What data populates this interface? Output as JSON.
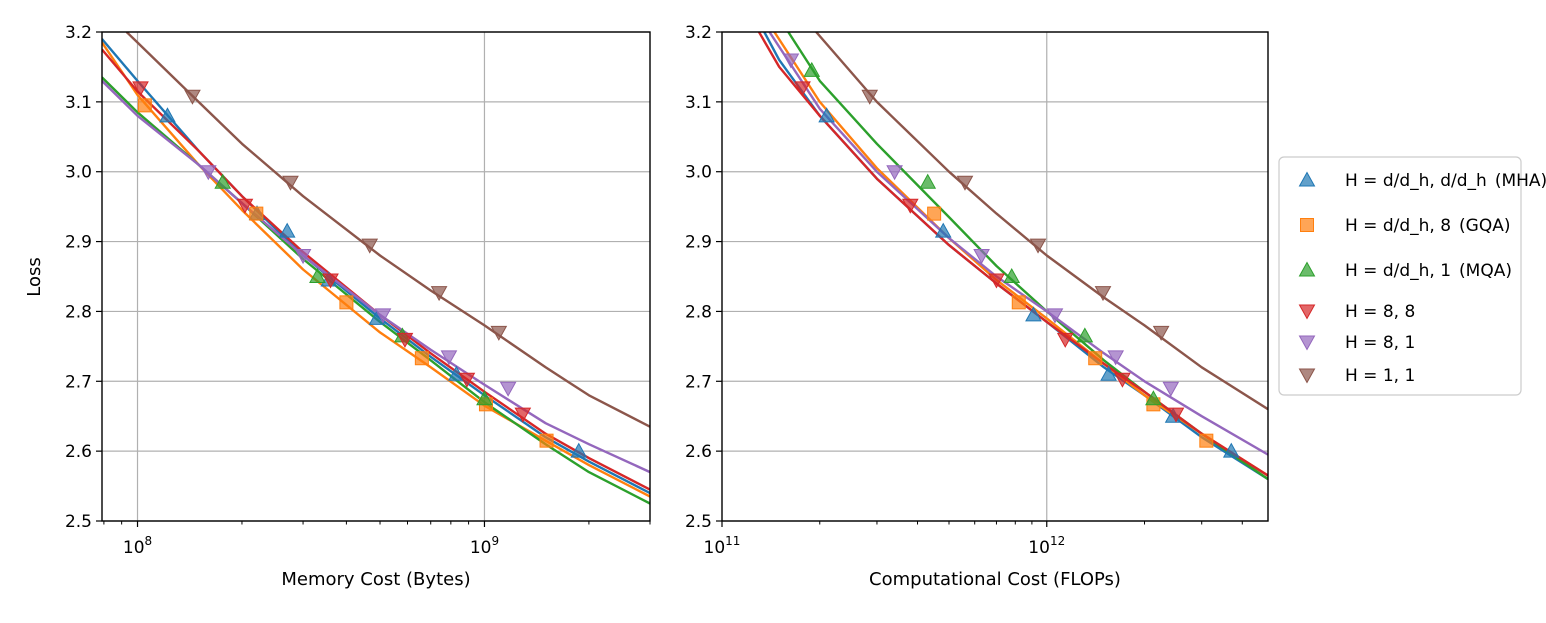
{
  "figure": {
    "ylabel": "Loss"
  },
  "legend": {
    "placement": "right",
    "entries": [
      {
        "series": "mha",
        "main": "H = d/d_h, d/d_h",
        "tag": "(MHA)"
      },
      {
        "series": "gqa",
        "main": "H = d/d_h, 8",
        "tag": "(GQA)"
      },
      {
        "series": "mqa",
        "main": "H = d/d_h, 1",
        "tag": "(MQA)"
      },
      {
        "series": "h88",
        "main": "H = 8, 8",
        "tag": ""
      },
      {
        "series": "h81",
        "main": "H = 8, 1",
        "tag": ""
      },
      {
        "series": "h11",
        "main": "H = 1, 1",
        "tag": ""
      }
    ]
  },
  "styles": {
    "mha": {
      "color": "#1f77b4",
      "marker": "triangle-up"
    },
    "gqa": {
      "color": "#ff7f0e",
      "marker": "square"
    },
    "mqa": {
      "color": "#2ca02c",
      "marker": "triangle-up"
    },
    "h88": {
      "color": "#d62728",
      "marker": "triangle-down"
    },
    "h81": {
      "color": "#9467bd",
      "marker": "triangle-down"
    },
    "h11": {
      "color": "#8c564b",
      "marker": "triangle-down"
    }
  },
  "chart_data": [
    {
      "type": "scatter",
      "xscale": "log",
      "xlabel": "Memory Cost (Bytes)",
      "ylabel": "Loss",
      "xlim": [
        79000000.0,
        3000000000.0
      ],
      "ylim": [
        2.5,
        3.2
      ],
      "xticks": [
        {
          "value": 100000000.0,
          "label": "10^8"
        },
        {
          "value": 1000000000.0,
          "label": "10^9"
        }
      ],
      "yticks": [
        2.5,
        2.6,
        2.7,
        2.8,
        2.9,
        3.0,
        3.1,
        3.2
      ],
      "grid": true,
      "series": [
        {
          "name": "mha",
          "points": [
            [
              122000000.0,
              3.08
            ],
            [
              221000000.0,
              2.94
            ],
            [
              270000000.0,
              2.915
            ],
            [
              356000000.0,
              2.845
            ],
            [
              490000000.0,
              2.79
            ],
            [
              830000000.0,
              2.71
            ],
            [
              1870000000.0,
              2.6
            ]
          ],
          "fit": [
            [
              79000000.0,
              3.19
            ],
            [
              100000000.0,
              3.13
            ],
            [
              150000000.0,
              3.03
            ],
            [
              200000000.0,
              2.965
            ],
            [
              300000000.0,
              2.88
            ],
            [
              500000000.0,
              2.79
            ],
            [
              700000000.0,
              2.735
            ],
            [
              1000000000.0,
              2.68
            ],
            [
              1500000000.0,
              2.62
            ],
            [
              2000000000.0,
              2.585
            ],
            [
              3000000000.0,
              2.54
            ]
          ]
        },
        {
          "name": "gqa",
          "points": [
            [
              105000000.0,
              3.095
            ],
            [
              220000000.0,
              2.94
            ],
            [
              400000000.0,
              2.813
            ],
            [
              660000000.0,
              2.733
            ],
            [
              1010000000.0,
              2.667
            ],
            [
              1510000000.0,
              2.615
            ]
          ],
          "fit": [
            [
              79000000.0,
              3.185
            ],
            [
              100000000.0,
              3.11
            ],
            [
              150000000.0,
              3.01
            ],
            [
              200000000.0,
              2.945
            ],
            [
              300000000.0,
              2.86
            ],
            [
              500000000.0,
              2.77
            ],
            [
              700000000.0,
              2.72
            ],
            [
              1000000000.0,
              2.665
            ],
            [
              1500000000.0,
              2.615
            ],
            [
              2000000000.0,
              2.58
            ],
            [
              3000000000.0,
              2.535
            ]
          ]
        },
        {
          "name": "mqa",
          "points": [
            [
              176000000.0,
              2.985
            ],
            [
              330000000.0,
              2.85
            ],
            [
              580000000.0,
              2.765
            ],
            [
              1000000000.0,
              2.675
            ]
          ],
          "fit": [
            [
              79000000.0,
              3.135
            ],
            [
              100000000.0,
              3.085
            ],
            [
              150000000.0,
              3.01
            ],
            [
              200000000.0,
              2.955
            ],
            [
              300000000.0,
              2.875
            ],
            [
              500000000.0,
              2.785
            ],
            [
              700000000.0,
              2.73
            ],
            [
              1000000000.0,
              2.67
            ],
            [
              1500000000.0,
              2.61
            ],
            [
              2000000000.0,
              2.57
            ],
            [
              3000000000.0,
              2.525
            ]
          ]
        },
        {
          "name": "h88",
          "points": [
            [
              102000000.0,
              3.12
            ],
            [
              204000000.0,
              2.952
            ],
            [
              360000000.0,
              2.845
            ],
            [
              590000000.0,
              2.76
            ],
            [
              890000000.0,
              2.703
            ],
            [
              1290000000.0,
              2.653
            ]
          ],
          "fit": [
            [
              79000000.0,
              3.175
            ],
            [
              100000000.0,
              3.115
            ],
            [
              150000000.0,
              3.03
            ],
            [
              200000000.0,
              2.965
            ],
            [
              300000000.0,
              2.885
            ],
            [
              500000000.0,
              2.795
            ],
            [
              700000000.0,
              2.74
            ],
            [
              1000000000.0,
              2.685
            ],
            [
              1500000000.0,
              2.625
            ],
            [
              2000000000.0,
              2.59
            ],
            [
              3000000000.0,
              2.545
            ]
          ]
        },
        {
          "name": "h81",
          "points": [
            [
              160000000.0,
              3.0
            ],
            [
              300000000.0,
              2.88
            ],
            [
              510000000.0,
              2.795
            ],
            [
              790000000.0,
              2.735
            ],
            [
              1170000000.0,
              2.69
            ]
          ],
          "fit": [
            [
              79000000.0,
              3.13
            ],
            [
              100000000.0,
              3.08
            ],
            [
              150000000.0,
              3.01
            ],
            [
              200000000.0,
              2.955
            ],
            [
              300000000.0,
              2.88
            ],
            [
              500000000.0,
              2.795
            ],
            [
              700000000.0,
              2.745
            ],
            [
              1000000000.0,
              2.695
            ],
            [
              1500000000.0,
              2.64
            ],
            [
              2000000000.0,
              2.61
            ],
            [
              3000000000.0,
              2.57
            ]
          ]
        },
        {
          "name": "h11",
          "points": [
            [
              144000000.0,
              3.108
            ],
            [
              276000000.0,
              2.985
            ],
            [
              467000000.0,
              2.895
            ],
            [
              740000000.0,
              2.827
            ],
            [
              1100000000.0,
              2.77
            ]
          ],
          "fit": [
            [
              93000000.0,
              3.2
            ],
            [
              100000000.0,
              3.185
            ],
            [
              150000000.0,
              3.1
            ],
            [
              200000000.0,
              3.04
            ],
            [
              300000000.0,
              2.965
            ],
            [
              500000000.0,
              2.88
            ],
            [
              700000000.0,
              2.83
            ],
            [
              1000000000.0,
              2.78
            ],
            [
              1500000000.0,
              2.72
            ],
            [
              2000000000.0,
              2.68
            ],
            [
              3000000000.0,
              2.635
            ]
          ]
        }
      ]
    },
    {
      "type": "scatter",
      "xscale": "log",
      "xlabel": "Computational Cost (FLOPs)",
      "ylabel": "",
      "xlim": [
        100000000000.0,
        4800000000000.0
      ],
      "ylim": [
        2.5,
        3.2
      ],
      "xticks": [
        {
          "value": 100000000000.0,
          "label": "10^11"
        },
        {
          "value": 1000000000000.0,
          "label": "10^12"
        }
      ],
      "yticks": [
        2.5,
        2.6,
        2.7,
        2.8,
        2.9,
        3.0,
        3.1,
        3.2
      ],
      "grid": true,
      "series": [
        {
          "name": "mha",
          "points": [
            [
              210000000000.0,
              3.08
            ],
            [
              480000000000.0,
              2.915
            ],
            [
              910000000000.0,
              2.795
            ],
            [
              1550000000000.0,
              2.71
            ],
            [
              2450000000000.0,
              2.65
            ],
            [
              3700000000000.0,
              2.6
            ]
          ],
          "fit": [
            [
              135000000000.0,
              3.2
            ],
            [
              150000000000.0,
              3.16
            ],
            [
              200000000000.0,
              3.08
            ],
            [
              300000000000.0,
              2.99
            ],
            [
              500000000000.0,
              2.895
            ],
            [
              700000000000.0,
              2.84
            ],
            [
              1000000000000.0,
              2.785
            ],
            [
              1500000000000.0,
              2.72
            ],
            [
              2000000000000.0,
              2.68
            ],
            [
              3000000000000.0,
              2.62
            ],
            [
              4800000000000.0,
              2.56
            ]
          ]
        },
        {
          "name": "gqa",
          "points": [
            [
              450000000000.0,
              2.94
            ],
            [
              820000000000.0,
              2.813
            ],
            [
              1410000000000.0,
              2.733
            ],
            [
              2130000000000.0,
              2.667
            ],
            [
              3100000000000.0,
              2.615
            ]
          ],
          "fit": [
            [
              145000000000.0,
              3.2
            ],
            [
              200000000000.0,
              3.1
            ],
            [
              300000000000.0,
              3.005
            ],
            [
              500000000000.0,
              2.905
            ],
            [
              700000000000.0,
              2.845
            ],
            [
              1000000000000.0,
              2.79
            ],
            [
              1500000000000.0,
              2.725
            ],
            [
              2000000000000.0,
              2.68
            ],
            [
              3000000000000.0,
              2.625
            ],
            [
              4800000000000.0,
              2.565
            ]
          ]
        },
        {
          "name": "mqa",
          "points": [
            [
              189000000000.0,
              3.145
            ],
            [
              430000000000.0,
              2.985
            ],
            [
              780000000000.0,
              2.85
            ],
            [
              1310000000000.0,
              2.765
            ],
            [
              2130000000000.0,
              2.675
            ]
          ],
          "fit": [
            [
              160000000000.0,
              3.2
            ],
            [
              200000000000.0,
              3.13
            ],
            [
              300000000000.0,
              3.04
            ],
            [
              500000000000.0,
              2.935
            ],
            [
              700000000000.0,
              2.865
            ],
            [
              1000000000000.0,
              2.8
            ],
            [
              1500000000000.0,
              2.73
            ],
            [
              2000000000000.0,
              2.685
            ],
            [
              3000000000000.0,
              2.625
            ],
            [
              4800000000000.0,
              2.56
            ]
          ]
        },
        {
          "name": "h88",
          "points": [
            [
              177000000000.0,
              3.12
            ],
            [
              380000000000.0,
              2.952
            ],
            [
              700000000000.0,
              2.845
            ],
            [
              1140000000000.0,
              2.76
            ],
            [
              1710000000000.0,
              2.703
            ],
            [
              2500000000000.0,
              2.653
            ]
          ],
          "fit": [
            [
              130000000000.0,
              3.2
            ],
            [
              150000000000.0,
              3.15
            ],
            [
              200000000000.0,
              3.08
            ],
            [
              300000000000.0,
              2.99
            ],
            [
              500000000000.0,
              2.895
            ],
            [
              700000000000.0,
              2.84
            ],
            [
              1000000000000.0,
              2.785
            ],
            [
              1500000000000.0,
              2.725
            ],
            [
              2000000000000.0,
              2.685
            ],
            [
              3000000000000.0,
              2.625
            ],
            [
              4800000000000.0,
              2.565
            ]
          ]
        },
        {
          "name": "h81",
          "points": [
            [
              163000000000.0,
              3.16
            ],
            [
              340000000000.0,
              3.0
            ],
            [
              630000000000.0,
              2.88
            ],
            [
              1060000000000.0,
              2.795
            ],
            [
              1630000000000.0,
              2.735
            ],
            [
              2410000000000.0,
              2.69
            ]
          ],
          "fit": [
            [
              140000000000.0,
              3.2
            ],
            [
              200000000000.0,
              3.09
            ],
            [
              300000000000.0,
              3.0
            ],
            [
              500000000000.0,
              2.905
            ],
            [
              700000000000.0,
              2.85
            ],
            [
              1000000000000.0,
              2.8
            ],
            [
              1500000000000.0,
              2.74
            ],
            [
              2000000000000.0,
              2.7
            ],
            [
              3000000000000.0,
              2.65
            ],
            [
              4800000000000.0,
              2.595
            ]
          ]
        },
        {
          "name": "h11",
          "points": [
            [
              285000000000.0,
              3.108
            ],
            [
              560000000000.0,
              2.985
            ],
            [
              940000000000.0,
              2.895
            ],
            [
              1490000000000.0,
              2.827
            ],
            [
              2250000000000.0,
              2.77
            ]
          ],
          "fit": [
            [
              195000000000.0,
              3.2
            ],
            [
              300000000000.0,
              3.1
            ],
            [
              500000000000.0,
              3.0
            ],
            [
              700000000000.0,
              2.94
            ],
            [
              1000000000000.0,
              2.88
            ],
            [
              1500000000000.0,
              2.82
            ],
            [
              2000000000000.0,
              2.78
            ],
            [
              3000000000000.0,
              2.72
            ],
            [
              4800000000000.0,
              2.66
            ]
          ]
        }
      ]
    }
  ]
}
